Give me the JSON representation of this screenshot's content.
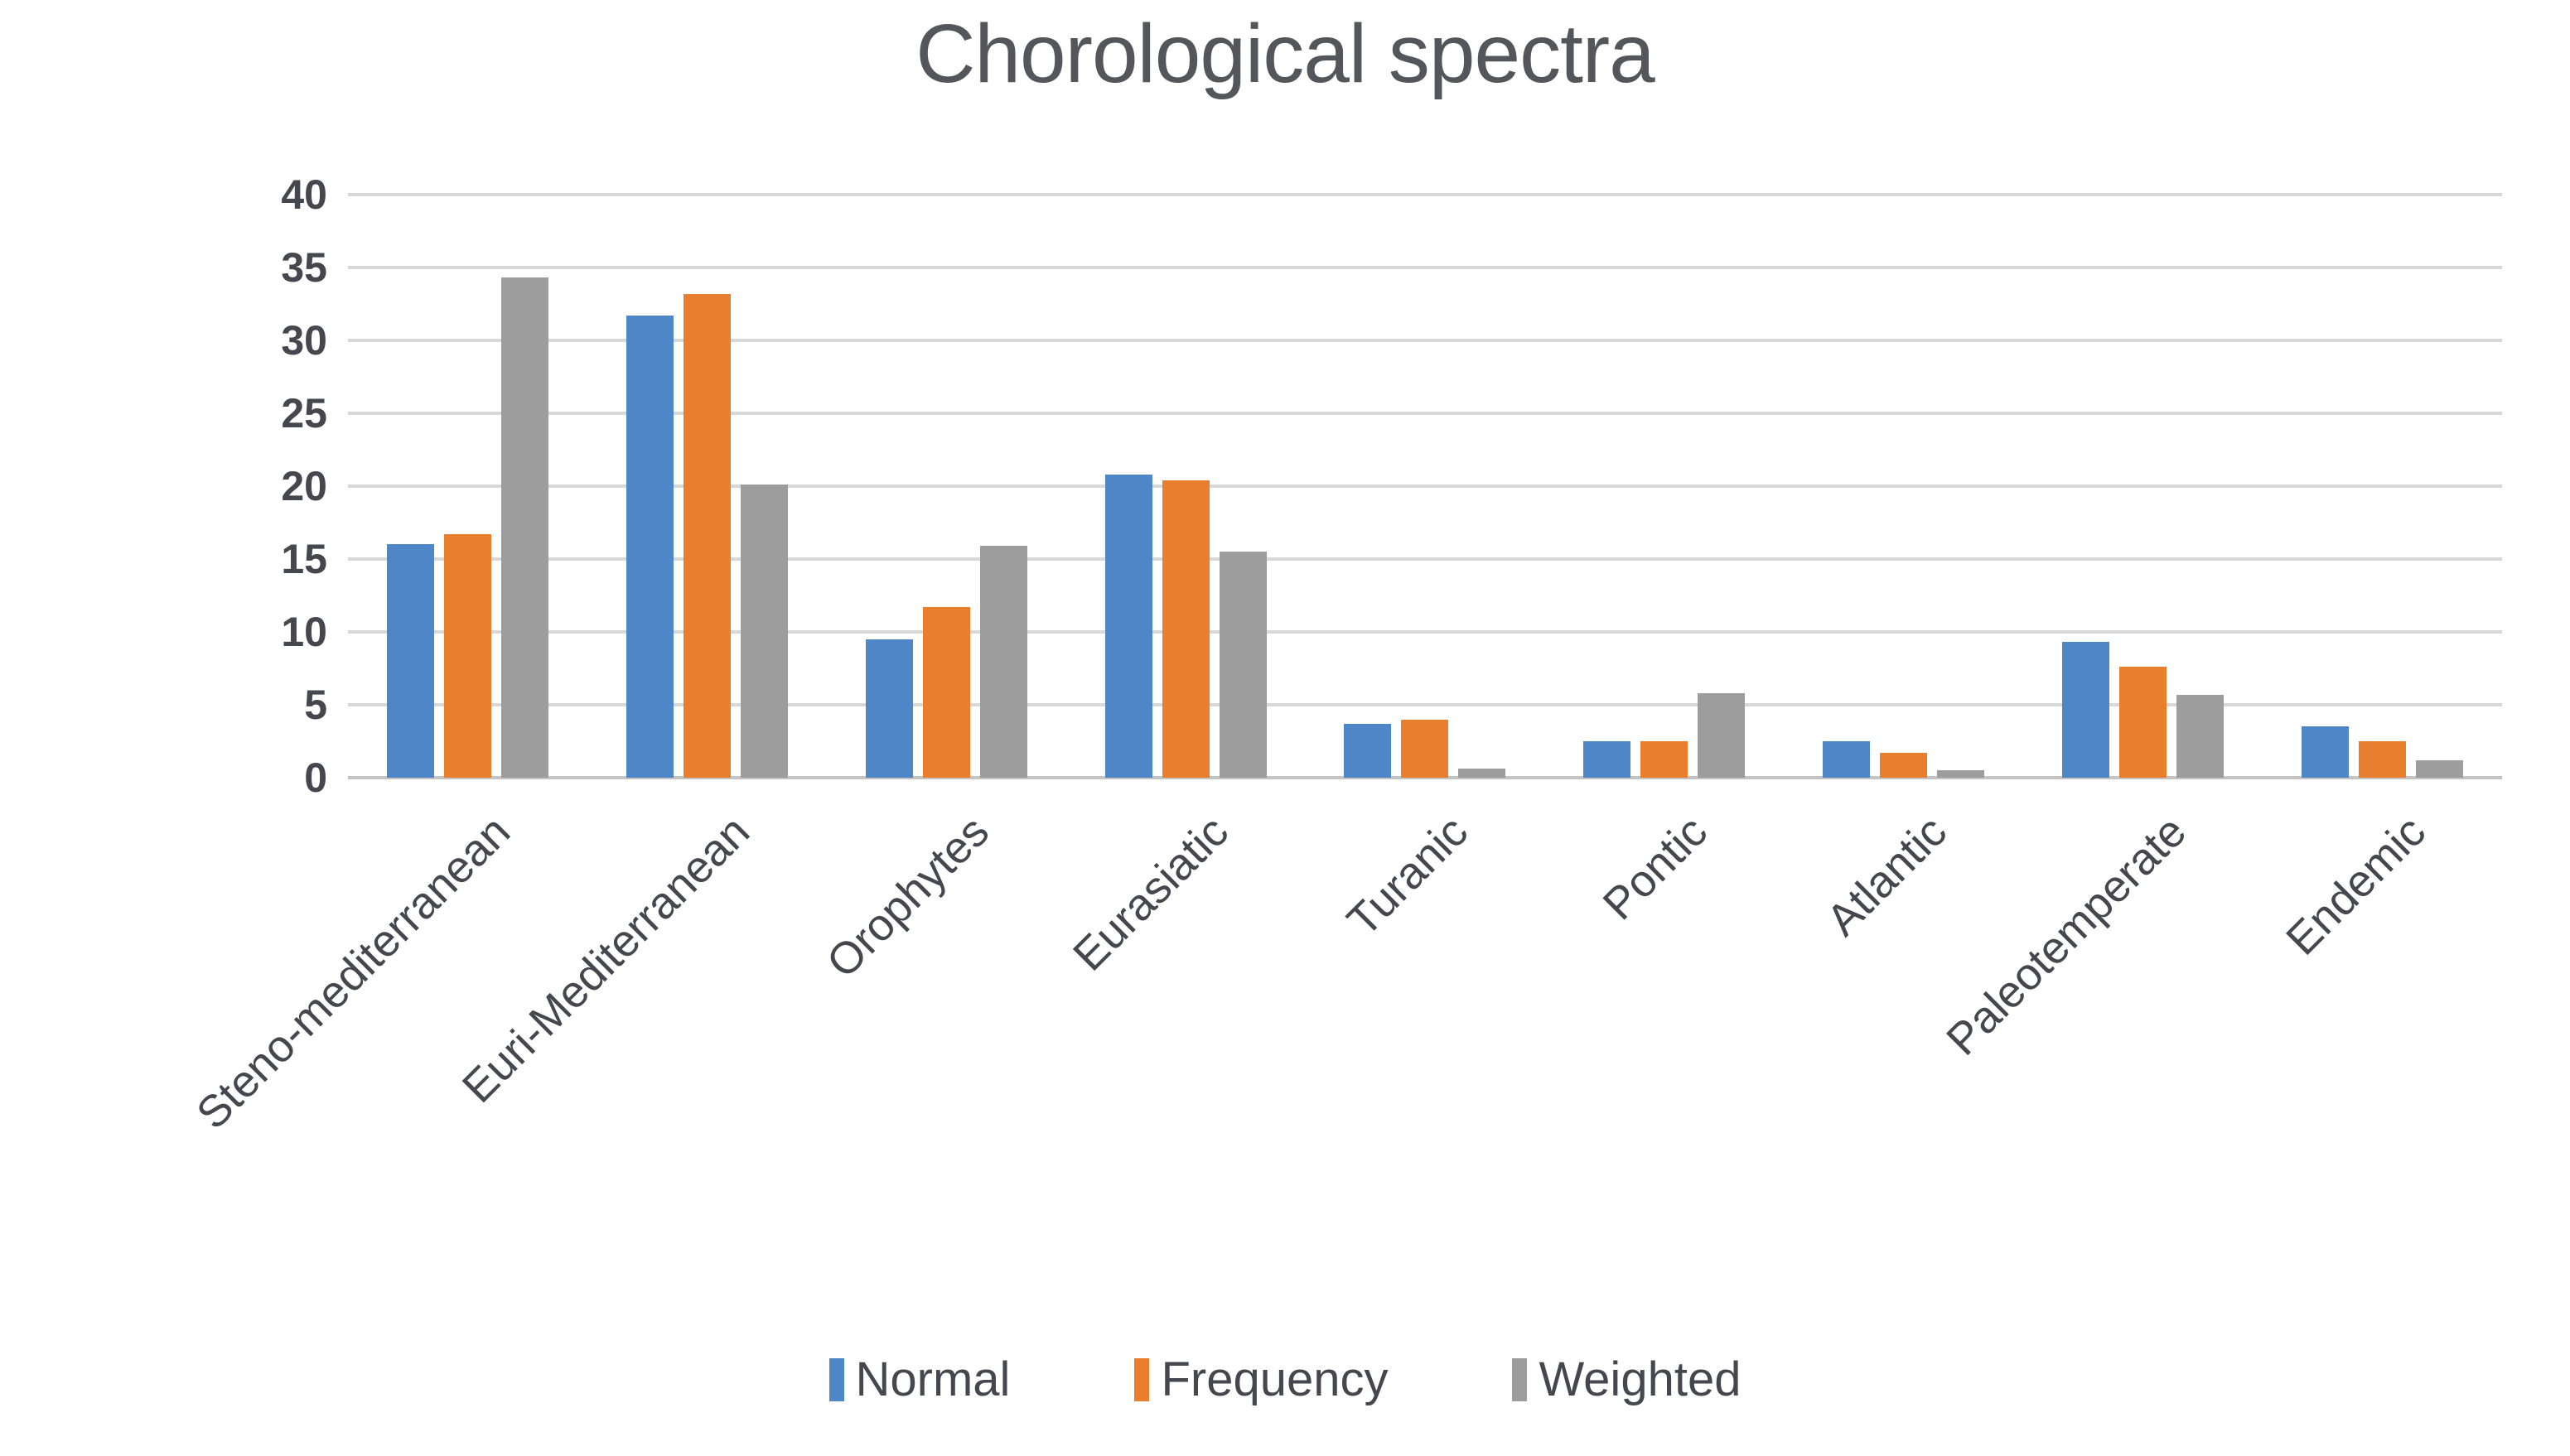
{
  "chart_data": {
    "type": "bar",
    "title": "Chorological spectra",
    "categories": [
      "Steno-mediterranean",
      "Euri-Mediterranean",
      "Orophytes",
      "Eurasiatic",
      "Turanic",
      "Pontic",
      "Atlantic",
      "Paleotemperate",
      "Endemic"
    ],
    "series": [
      {
        "name": "Normal",
        "color": "#4E86C8",
        "values": [
          16.0,
          31.7,
          9.5,
          20.8,
          3.7,
          2.5,
          2.5,
          9.3,
          3.5
        ]
      },
      {
        "name": "Frequency",
        "color": "#E87E2E",
        "values": [
          16.7,
          33.2,
          11.7,
          20.4,
          4.0,
          2.5,
          1.7,
          7.6,
          2.5
        ]
      },
      {
        "name": "Weighted",
        "color": "#9D9D9D",
        "values": [
          34.3,
          20.1,
          15.9,
          15.5,
          0.6,
          5.8,
          0.5,
          5.7,
          1.2
        ]
      }
    ],
    "xlabel": "",
    "ylabel": "",
    "ylim": [
      0,
      40
    ],
    "ytick_step": 5,
    "ytick_labels": [
      "40",
      "35",
      "30",
      "25",
      "20",
      "15",
      "10",
      "5",
      "0"
    ],
    "grid": true,
    "legend_position": "bottom",
    "colors": {
      "gridline": "#D8D8D8",
      "axis_line": "#C4C4C4",
      "title_text": "#55565B",
      "axis_text": "#45474E"
    }
  }
}
